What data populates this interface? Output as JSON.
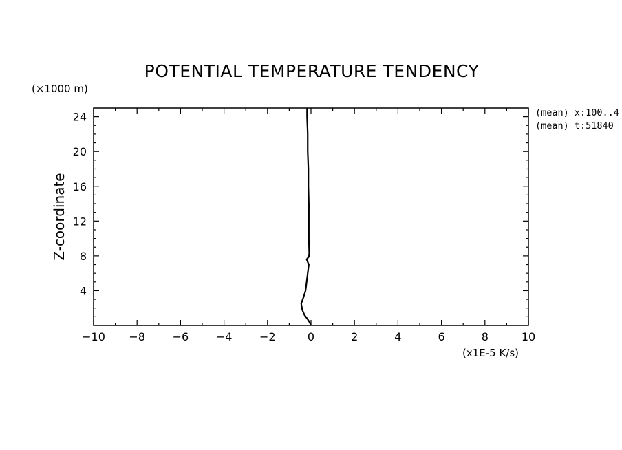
{
  "chart_data": {
    "type": "line",
    "title": "POTENTIAL TEMPERATURE TENDENCY",
    "xlabel": "(x1E-5 K/s)",
    "ylabel": "Z-coordinate",
    "y_unit_label": "(×1000 m)",
    "xlim": [
      -10,
      10
    ],
    "ylim": [
      0,
      25
    ],
    "x_ticks": [
      -10,
      -8,
      -6,
      -4,
      -2,
      0,
      2,
      4,
      6,
      8,
      10
    ],
    "x_tick_labels": [
      "−10",
      "−8",
      "−6",
      "−4",
      "−2",
      "0",
      "2",
      "4",
      "6",
      "8",
      "10"
    ],
    "y_ticks": [
      4,
      8,
      12,
      16,
      20,
      24
    ],
    "y_tick_labels": [
      "4",
      "8",
      "12",
      "16",
      "20",
      "24"
    ],
    "grid": false,
    "annotations": [
      "(mean) x:100..4",
      "(mean) t:51840"
    ],
    "series": [
      {
        "color": "#000000",
        "points": [
          [
            0.0,
            0.0
          ],
          [
            -0.05,
            0.3
          ],
          [
            -0.15,
            0.7
          ],
          [
            -0.3,
            1.2
          ],
          [
            -0.4,
            1.8
          ],
          [
            -0.45,
            2.5
          ],
          [
            -0.35,
            3.2
          ],
          [
            -0.25,
            4.0
          ],
          [
            -0.2,
            5.0
          ],
          [
            -0.15,
            6.0
          ],
          [
            -0.1,
            7.0
          ],
          [
            -0.2,
            7.6
          ],
          [
            -0.1,
            7.9
          ],
          [
            -0.08,
            8.3
          ],
          [
            -0.1,
            10.0
          ],
          [
            -0.1,
            12.0
          ],
          [
            -0.1,
            14.0
          ],
          [
            -0.12,
            16.0
          ],
          [
            -0.12,
            18.0
          ],
          [
            -0.15,
            20.0
          ],
          [
            -0.15,
            22.0
          ],
          [
            -0.18,
            24.0
          ],
          [
            -0.18,
            25.0
          ]
        ]
      }
    ]
  }
}
